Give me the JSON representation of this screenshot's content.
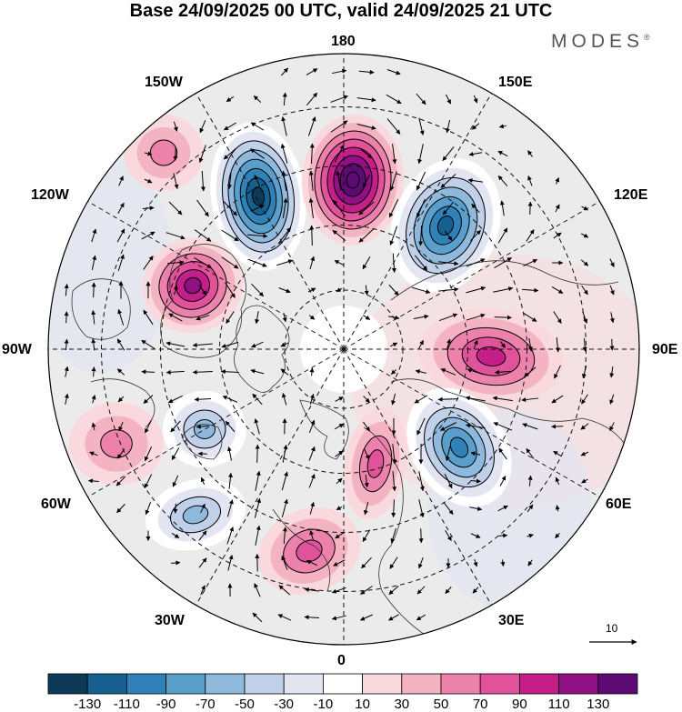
{
  "title": "Base 24/09/2025 00 UTC, valid 24/09/2025 21 UTC",
  "brand": "MODES",
  "brand_mark": "®",
  "longitude_labels": {
    "top": "180",
    "bottom": "0",
    "left": "90W",
    "right": "90E",
    "upper_left_1": "150W",
    "upper_left_2": "120W",
    "lower_left_1": "60W",
    "lower_left_2": "30W",
    "upper_right_1": "150E",
    "upper_right_2": "120E",
    "lower_right_1": "60E",
    "lower_right_2": "30E"
  },
  "wind_reference": {
    "label": "10",
    "value": 10
  },
  "colorbar": {
    "colors": [
      "#0c3a58",
      "#16608f",
      "#2f81b7",
      "#5a9fcb",
      "#8fb9dc",
      "#bfd0e8",
      "#e3e5f2",
      "#ffffff",
      "#f9d9de",
      "#f4b3c3",
      "#ec82ab",
      "#e0529a",
      "#c41f88",
      "#8f1183",
      "#5c0b72"
    ],
    "labels": [
      "-130",
      "-110",
      "-90",
      "-70",
      "-50",
      "-30",
      "-10",
      "10",
      "30",
      "50",
      "70",
      "90",
      "110",
      "130"
    ]
  },
  "anomaly_centers": [
    {
      "name": "low-150w",
      "value": -130
    },
    {
      "name": "high-180",
      "value": 130
    },
    {
      "name": "low-150e",
      "value": -110
    },
    {
      "name": "high-120w",
      "value": 90
    },
    {
      "name": "high-90e",
      "value": 70
    },
    {
      "name": "low-60e",
      "value": -90
    },
    {
      "name": "low-80w",
      "value": -50
    },
    {
      "name": "low-45w",
      "value": -50
    },
    {
      "name": "high-15e",
      "value": 50
    },
    {
      "name": "high-0",
      "value": 50
    },
    {
      "name": "high-75w",
      "value": 30
    },
    {
      "name": "high-140w",
      "value": 30
    }
  ]
}
